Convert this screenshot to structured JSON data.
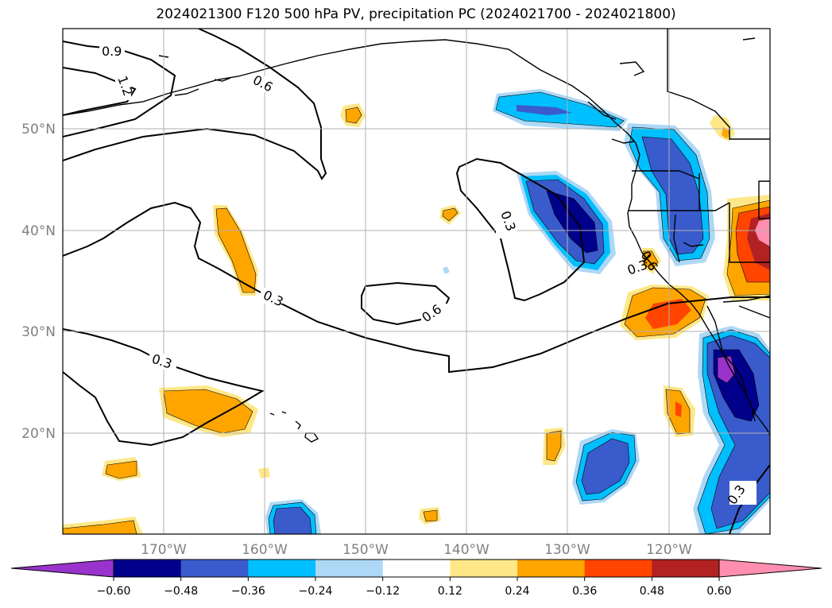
{
  "title": "2024021300 F120 500 hPa PV, precipitation PC (2024021700 - 2024021800)",
  "lat_labels": [
    "50°N",
    "40°N",
    "30°N",
    "20°N"
  ],
  "lon_labels": [
    "170°W",
    "160°W",
    "150°W",
    "140°W",
    "130°W",
    "120°W"
  ],
  "colorbar": {
    "ticks": [
      "−0.60",
      "−0.48",
      "−0.36",
      "−0.24",
      "−0.12",
      "0.12",
      "0.24",
      "0.36",
      "0.48",
      "0.60"
    ],
    "colors": [
      "#9933cc",
      "#00008b",
      "#3a5bcc",
      "#00bfff",
      "#add8f6",
      "#ffffff",
      "#ffe787",
      "#ffa500",
      "#ff4500",
      "#b22222",
      "#ff8eb0"
    ]
  },
  "contour_labels": [
    "0.9",
    "1.2",
    "0.6",
    "0.3",
    "0.3",
    "0.6",
    "0.3",
    "0.3",
    "0.6",
    "0.3"
  ]
}
